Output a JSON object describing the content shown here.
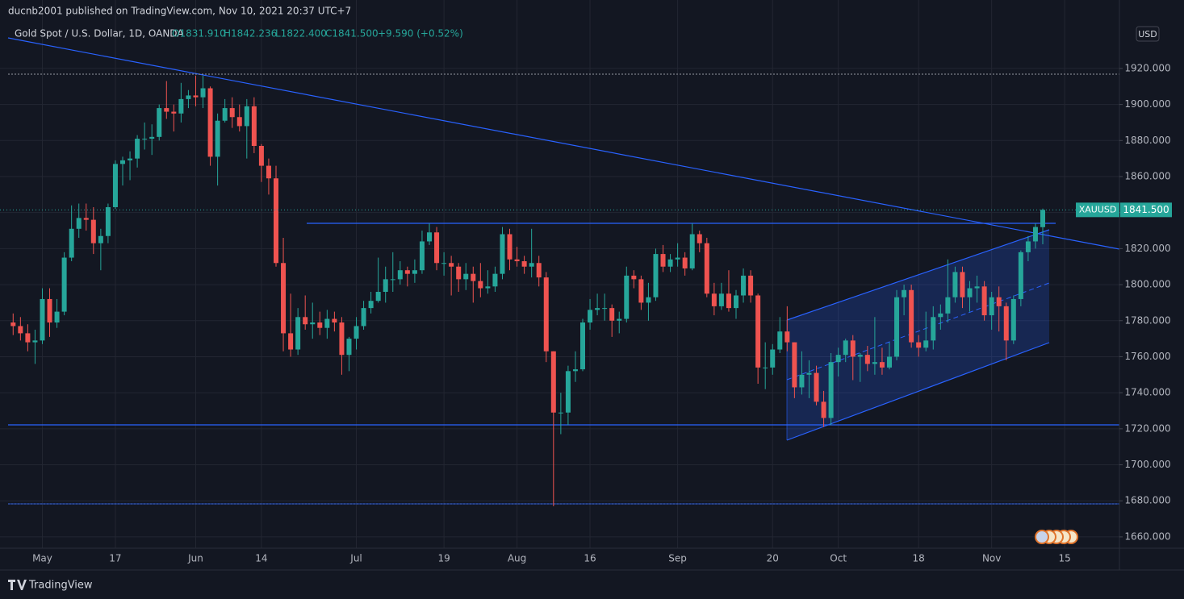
{
  "header": {
    "publisher": "ducnb2001 published on TradingView.com, Nov 10, 2021 20:37 UTC+7",
    "footer": "TradingView"
  },
  "chart_data": {
    "type": "candlestick",
    "legend": {
      "symbol": "Gold Spot / U.S. Dollar, 1D, OANDA",
      "open": "O1831.910",
      "high": "H1842.236",
      "low": "L1822.400",
      "close": "C1841.500",
      "change": "+9.590 (+0.52%)"
    },
    "currency": "USD",
    "price_badge": {
      "symbol": "XAUUSD",
      "price": {
        "value": 1841.5,
        "label": "1841.500"
      }
    },
    "up_color": "#26a69a",
    "down_color": "#ef5350",
    "grid": true,
    "xlim": [
      -1.8,
      151.5
    ],
    "ylim": [
      1653.7,
      1958
    ],
    "xticks": [
      {
        "value": 4,
        "label": "May"
      },
      {
        "value": 14,
        "label": "17"
      },
      {
        "value": 25,
        "label": "Jun"
      },
      {
        "value": 34,
        "label": "14"
      },
      {
        "value": 47,
        "label": "Jul"
      },
      {
        "value": 59,
        "label": "19"
      },
      {
        "value": 69,
        "label": "Aug"
      },
      {
        "value": 79,
        "label": "16"
      },
      {
        "value": 91,
        "label": "Sep"
      },
      {
        "value": 104,
        "label": "20"
      },
      {
        "value": 113,
        "label": "Oct"
      },
      {
        "value": 124,
        "label": "18"
      },
      {
        "value": 134,
        "label": "Nov"
      },
      {
        "value": 144,
        "label": "15"
      }
    ],
    "yticks": [
      {
        "value": 1660,
        "label": "1660.000"
      },
      {
        "value": 1680,
        "label": "1680.000"
      },
      {
        "value": 1700,
        "label": "1700.000"
      },
      {
        "value": 1720,
        "label": "1720.000"
      },
      {
        "value": 1740,
        "label": "1740.000"
      },
      {
        "value": 1760,
        "label": "1760.000"
      },
      {
        "value": 1780,
        "label": "1780.000"
      },
      {
        "value": 1800,
        "label": "1800.000"
      },
      {
        "value": 1820,
        "label": "1820.000"
      },
      {
        "value": 1840,
        "label": "1840.000"
      },
      {
        "value": 1860,
        "label": "1860.000"
      },
      {
        "value": 1880,
        "label": "1880.000"
      },
      {
        "value": 1900,
        "label": "1900.000"
      },
      {
        "value": 1920,
        "label": "1920.000"
      }
    ],
    "open": [
      1779,
      1777,
      1773,
      1768,
      1769,
      1792,
      1779,
      1785,
      1815,
      1831,
      1837,
      1836,
      1823,
      1827,
      1843,
      1867,
      1869,
      1870,
      1881,
      1881,
      1882,
      1898,
      1896,
      1895,
      1903,
      1905,
      1904,
      1909,
      1871,
      1891,
      1898,
      1893,
      1888,
      1899,
      1877,
      1866,
      1859,
      1812,
      1773,
      1764,
      1782,
      1778,
      1779,
      1776,
      1781,
      1779,
      1761,
      1770,
      1777,
      1787,
      1791,
      1796,
      1803,
      1803,
      1808,
      1806,
      1808,
      1824,
      1829,
      1812,
      1812,
      1810,
      1803,
      1806,
      1802,
      1798,
      1799,
      1806,
      1828,
      1814,
      1813,
      1810,
      1812,
      1804,
      1763,
      1729,
      1729,
      1752,
      1753,
      1779,
      1786,
      1787,
      1787,
      1780,
      1781,
      1805,
      1803,
      1790,
      1793,
      1817,
      1810,
      1814,
      1815,
      1809,
      1828,
      1823,
      1795,
      1788,
      1795,
      1787,
      1794,
      1805,
      1794,
      1754,
      1754,
      1764,
      1774,
      1768,
      1743,
      1750,
      1751,
      1735,
      1726,
      1757,
      1761,
      1769,
      1760,
      1761,
      1756,
      1757,
      1754,
      1760,
      1793,
      1797,
      1768,
      1765,
      1769,
      1782,
      1784,
      1793,
      1807,
      1793,
      1798,
      1799,
      1783,
      1793,
      1788,
      1769,
      1792,
      1818,
      1824,
      1831.91
    ],
    "high": [
      1784,
      1782,
      1778,
      1775,
      1798,
      1798,
      1792,
      1818,
      1844,
      1845,
      1845,
      1843,
      1831,
      1845,
      1869,
      1871,
      1874,
      1883,
      1890,
      1889,
      1900,
      1913,
      1900,
      1912,
      1908,
      1916,
      1916,
      1910,
      1895,
      1903,
      1904,
      1900,
      1903,
      1904,
      1878,
      1870,
      1866,
      1826,
      1795,
      1787,
      1794,
      1790,
      1785,
      1786,
      1785,
      1782,
      1771,
      1782,
      1791,
      1796,
      1815,
      1810,
      1818,
      1813,
      1810,
      1814,
      1830,
      1834,
      1832,
      1818,
      1816,
      1812,
      1812,
      1810,
      1812,
      1808,
      1810,
      1832,
      1831,
      1821,
      1816,
      1831,
      1816,
      1807,
      1763,
      1740,
      1755,
      1763,
      1781,
      1792,
      1795,
      1795,
      1789,
      1785,
      1810,
      1808,
      1805,
      1801,
      1820,
      1822,
      1817,
      1823,
      1818,
      1834,
      1830,
      1826,
      1801,
      1801,
      1808,
      1797,
      1809,
      1808,
      1795,
      1768,
      1767,
      1782,
      1788,
      1768,
      1763,
      1758,
      1755,
      1741,
      1762,
      1765,
      1770,
      1772,
      1762,
      1766,
      1782,
      1765,
      1768,
      1797,
      1800,
      1800,
      1772,
      1785,
      1788,
      1789,
      1814,
      1810,
      1810,
      1802,
      1805,
      1802,
      1796,
      1799,
      1790,
      1794,
      1819,
      1827,
      1834,
      1842.236
    ],
    "low": [
      1772,
      1769,
      1763,
      1756,
      1767,
      1771,
      1776,
      1783,
      1813,
      1826,
      1830,
      1817,
      1808,
      1823,
      1842,
      1855,
      1858,
      1865,
      1875,
      1872,
      1880,
      1892,
      1885,
      1890,
      1898,
      1899,
      1898,
      1866,
      1855,
      1890,
      1887,
      1885,
      1870,
      1873,
      1857,
      1850,
      1810,
      1763,
      1760,
      1761,
      1775,
      1770,
      1772,
      1770,
      1774,
      1750,
      1752,
      1764,
      1775,
      1784,
      1790,
      1790,
      1796,
      1800,
      1799,
      1801,
      1806,
      1822,
      1808,
      1805,
      1794,
      1796,
      1797,
      1790,
      1793,
      1795,
      1796,
      1803,
      1808,
      1810,
      1806,
      1804,
      1799,
      1757,
      1677,
      1717,
      1722,
      1746,
      1752,
      1775,
      1783,
      1780,
      1771,
      1773,
      1779,
      1798,
      1786,
      1780,
      1791,
      1807,
      1807,
      1810,
      1805,
      1808,
      1818,
      1793,
      1783,
      1786,
      1785,
      1781,
      1790,
      1790,
      1745,
      1742,
      1750,
      1762,
      1763,
      1737,
      1739,
      1737,
      1733,
      1721,
      1722,
      1749,
      1757,
      1747,
      1746,
      1752,
      1750,
      1750,
      1753,
      1758,
      1783,
      1765,
      1760,
      1763,
      1764,
      1775,
      1779,
      1790,
      1787,
      1785,
      1790,
      1780,
      1775,
      1774,
      1758,
      1767,
      1788,
      1813,
      1820,
      1822.4
    ],
    "close": [
      1777,
      1773,
      1768,
      1769,
      1792,
      1779,
      1785,
      1815,
      1831,
      1837,
      1836,
      1823,
      1827,
      1843,
      1867,
      1869,
      1870,
      1881,
      1881,
      1882,
      1898,
      1896,
      1895,
      1903,
      1905,
      1904,
      1909,
      1871,
      1891,
      1898,
      1893,
      1888,
      1899,
      1877,
      1866,
      1859,
      1812,
      1773,
      1764,
      1782,
      1778,
      1779,
      1776,
      1781,
      1779,
      1761,
      1770,
      1777,
      1787,
      1791,
      1796,
      1803,
      1803,
      1808,
      1806,
      1808,
      1824,
      1829,
      1812,
      1812,
      1810,
      1803,
      1806,
      1802,
      1798,
      1799,
      1806,
      1828,
      1814,
      1813,
      1810,
      1812,
      1804,
      1763,
      1729,
      1729,
      1752,
      1753,
      1779,
      1786,
      1787,
      1787,
      1780,
      1781,
      1805,
      1803,
      1790,
      1793,
      1817,
      1810,
      1814,
      1815,
      1809,
      1828,
      1823,
      1795,
      1788,
      1795,
      1787,
      1794,
      1805,
      1794,
      1754,
      1754,
      1764,
      1774,
      1768,
      1743,
      1750,
      1751,
      1735,
      1726,
      1757,
      1761,
      1769,
      1760,
      1761,
      1756,
      1757,
      1754,
      1760,
      1793,
      1797,
      1768,
      1765,
      1769,
      1782,
      1784,
      1793,
      1807,
      1793,
      1798,
      1799,
      1783,
      1793,
      1788,
      1769,
      1792,
      1818,
      1824,
      1832,
      1841.5
    ]
  }
}
